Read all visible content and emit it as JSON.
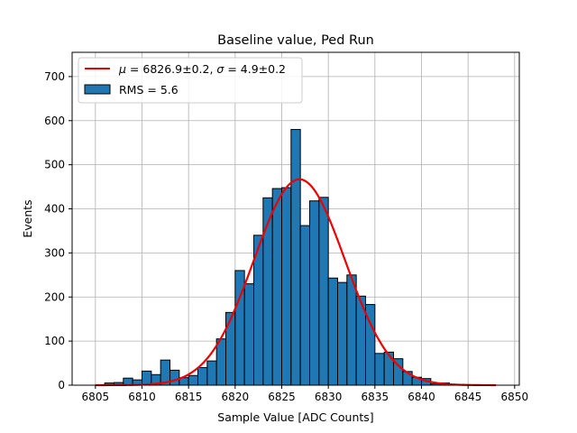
{
  "chart_data": {
    "type": "bar",
    "title": "Baseline value, Ped Run",
    "xlabel": "Sample Value [ADC Counts]",
    "ylabel": "Events",
    "xlim": [
      6802.5,
      6850.5
    ],
    "ylim": [
      0,
      755
    ],
    "xticks": [
      6805,
      6810,
      6815,
      6820,
      6825,
      6830,
      6835,
      6840,
      6845,
      6850
    ],
    "yticks": [
      0,
      100,
      200,
      300,
      400,
      500,
      600,
      700
    ],
    "grid": true,
    "legend_position": "top-left",
    "bin_width": 1,
    "bins": [
      [
        6806,
        6807,
        5
      ],
      [
        6807,
        6808,
        6
      ],
      [
        6808,
        6809,
        16
      ],
      [
        6809,
        6810,
        12
      ],
      [
        6810,
        6811,
        32
      ],
      [
        6811,
        6812,
        24
      ],
      [
        6812,
        6813,
        57
      ],
      [
        6813,
        6814,
        34
      ],
      [
        6814,
        6815,
        17
      ],
      [
        6815,
        6816,
        22
      ],
      [
        6816,
        6817,
        40
      ],
      [
        6817,
        6818,
        55
      ],
      [
        6818,
        6819,
        105
      ],
      [
        6819,
        6820,
        165
      ],
      [
        6820,
        6821,
        260
      ],
      [
        6821,
        6822,
        230
      ],
      [
        6822,
        6823,
        340
      ],
      [
        6823,
        6824,
        425
      ],
      [
        6824,
        6825,
        446
      ],
      [
        6825,
        6826,
        448
      ],
      [
        6826,
        6827,
        580
      ],
      [
        6827,
        6828,
        362
      ],
      [
        6828,
        6829,
        418
      ],
      [
        6829,
        6830,
        426
      ],
      [
        6830,
        6831,
        243
      ],
      [
        6831,
        6832,
        233
      ],
      [
        6832,
        6833,
        250
      ],
      [
        6833,
        6834,
        202
      ],
      [
        6834,
        6835,
        183
      ],
      [
        6835,
        6836,
        72
      ],
      [
        6836,
        6837,
        75
      ],
      [
        6837,
        6838,
        60
      ],
      [
        6838,
        6839,
        31
      ],
      [
        6839,
        6840,
        18
      ],
      [
        6840,
        6841,
        15
      ],
      [
        6841,
        6842,
        3
      ],
      [
        6842,
        6843,
        5
      ],
      [
        6843,
        6844,
        2
      ]
    ],
    "fit": {
      "mu": 6826.9,
      "sigma": 4.9,
      "amplitude": 467,
      "x_range": [
        6805,
        6848
      ],
      "color": "#ee0000"
    },
    "bar_color": "#1f77b4",
    "bar_edge_color": "#000000",
    "legend": [
      {
        "kind": "line",
        "color": "#ee0000",
        "label_parts": [
          "μ",
          " = 6826.9±0.2, ",
          "σ",
          " = 4.9±0.2"
        ]
      },
      {
        "kind": "patch",
        "color": "#1f77b4",
        "label": "RMS = 5.6"
      }
    ]
  }
}
